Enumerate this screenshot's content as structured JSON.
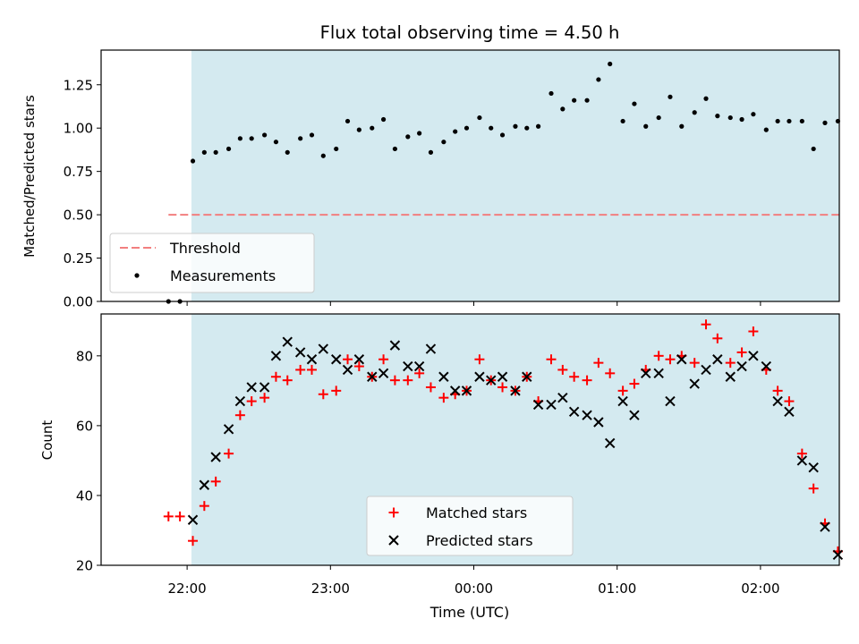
{
  "title": "Flux total observing time = 4.50 h",
  "xlabel": "Time (UTC)",
  "x_tick_labels": [
    "22:00",
    "23:00",
    "00:00",
    "01:00",
    "02:00"
  ],
  "colors": {
    "shade": "#d4eaf0",
    "threshold": "#f27f7f",
    "measurement": "#000000",
    "matched": "#ff0000",
    "predicted": "#000000"
  },
  "chart_data": [
    {
      "type": "scatter",
      "panel": "top",
      "ylabel": "Matched/Predicted stars",
      "xlim_hours": [
        21.4,
        26.55
      ],
      "ylim": [
        0,
        1.45
      ],
      "y_ticks": [
        "0.00",
        "0.25",
        "0.50",
        "0.75",
        "1.00",
        "1.25"
      ],
      "shaded_span_hours": [
        22.03,
        26.55
      ],
      "threshold": {
        "name": "Threshold",
        "y": 0.5,
        "x_hours": [
          21.87,
          26.55
        ]
      },
      "legend": {
        "position": "lower-left",
        "entries": [
          "Threshold",
          "Measurements"
        ]
      },
      "series": [
        {
          "name": "Measurements",
          "x_hours": [
            21.87,
            21.95,
            22.04,
            22.12,
            22.2,
            22.29,
            22.37,
            22.45,
            22.54,
            22.62,
            22.7,
            22.79,
            22.87,
            22.95,
            23.04,
            23.12,
            23.2,
            23.29,
            23.37,
            23.45,
            23.54,
            23.62,
            23.7,
            23.79,
            23.87,
            23.95,
            24.04,
            24.12,
            24.2,
            24.29,
            24.37,
            24.45,
            24.54,
            24.62,
            24.7,
            24.79,
            24.87,
            24.95,
            25.04,
            25.12,
            25.2,
            25.29,
            25.37,
            25.45,
            25.54,
            25.62,
            25.7,
            25.79,
            25.87,
            25.95,
            26.04,
            26.12,
            26.2,
            26.29,
            26.37,
            26.45,
            26.54
          ],
          "y": [
            0.0,
            0.0,
            0.81,
            0.86,
            0.86,
            0.88,
            0.94,
            0.94,
            0.96,
            0.92,
            0.86,
            0.94,
            0.96,
            0.84,
            0.88,
            1.04,
            0.99,
            1.0,
            1.05,
            0.88,
            0.95,
            0.97,
            0.86,
            0.92,
            0.98,
            1.0,
            1.06,
            1.0,
            0.96,
            1.01,
            1.0,
            1.01,
            1.2,
            1.11,
            1.16,
            1.16,
            1.28,
            1.37,
            1.04,
            1.14,
            1.01,
            1.06,
            1.18,
            1.01,
            1.09,
            1.17,
            1.07,
            1.06,
            1.05,
            1.08,
            0.99,
            1.04,
            1.04,
            1.04,
            0.88,
            1.03,
            1.04
          ]
        }
      ]
    },
    {
      "type": "scatter",
      "panel": "bottom",
      "ylabel": "Count",
      "xlim_hours": [
        21.4,
        26.55
      ],
      "ylim": [
        20,
        92
      ],
      "y_ticks": [
        "20",
        "40",
        "60",
        "80"
      ],
      "shaded_span_hours": [
        22.03,
        26.55
      ],
      "legend": {
        "position": "lower-center",
        "entries": [
          "Matched stars",
          "Predicted stars"
        ]
      },
      "series": [
        {
          "name": "Matched stars",
          "x_hours": [
            21.87,
            21.95,
            22.04,
            22.12,
            22.2,
            22.29,
            22.37,
            22.45,
            22.54,
            22.62,
            22.7,
            22.79,
            22.87,
            22.95,
            23.04,
            23.12,
            23.2,
            23.29,
            23.37,
            23.45,
            23.54,
            23.62,
            23.7,
            23.79,
            23.87,
            23.95,
            24.04,
            24.12,
            24.2,
            24.29,
            24.37,
            24.45,
            24.54,
            24.62,
            24.7,
            24.79,
            24.87,
            24.95,
            25.04,
            25.12,
            25.2,
            25.29,
            25.37,
            25.45,
            25.54,
            25.62,
            25.7,
            25.79,
            25.87,
            25.95,
            26.04,
            26.12,
            26.2,
            26.29,
            26.37,
            26.45,
            26.54
          ],
          "y": [
            34,
            34,
            27,
            37,
            44,
            52,
            63,
            67,
            68,
            74,
            73,
            76,
            76,
            69,
            70,
            79,
            77,
            74,
            79,
            73,
            73,
            75,
            71,
            68,
            69,
            70,
            79,
            73,
            71,
            70,
            74,
            67,
            79,
            76,
            74,
            73,
            78,
            75,
            70,
            72,
            76,
            80,
            79,
            80,
            78,
            89,
            85,
            78,
            81,
            87,
            76,
            70,
            67,
            52,
            42,
            32,
            24
          ]
        },
        {
          "name": "Predicted stars",
          "x_hours": [
            22.04,
            22.12,
            22.2,
            22.29,
            22.37,
            22.45,
            22.54,
            22.62,
            22.7,
            22.79,
            22.87,
            22.95,
            23.04,
            23.12,
            23.2,
            23.29,
            23.37,
            23.45,
            23.54,
            23.62,
            23.7,
            23.79,
            23.87,
            23.95,
            24.04,
            24.12,
            24.2,
            24.29,
            24.37,
            24.45,
            24.54,
            24.62,
            24.7,
            24.79,
            24.87,
            24.95,
            25.04,
            25.12,
            25.2,
            25.29,
            25.37,
            25.45,
            25.54,
            25.62,
            25.7,
            25.79,
            25.87,
            25.95,
            26.04,
            26.12,
            26.2,
            26.29,
            26.37,
            26.45,
            26.54
          ],
          "y": [
            33,
            43,
            51,
            59,
            67,
            71,
            71,
            80,
            84,
            81,
            79,
            82,
            79,
            76,
            79,
            74,
            75,
            83,
            77,
            77,
            82,
            74,
            70,
            70,
            74,
            73,
            74,
            70,
            74,
            66,
            66,
            68,
            64,
            63,
            61,
            55,
            67,
            63,
            75,
            75,
            67,
            79,
            72,
            76,
            79,
            74,
            77,
            80,
            77,
            67,
            64,
            50,
            48,
            31,
            23
          ]
        }
      ]
    }
  ]
}
